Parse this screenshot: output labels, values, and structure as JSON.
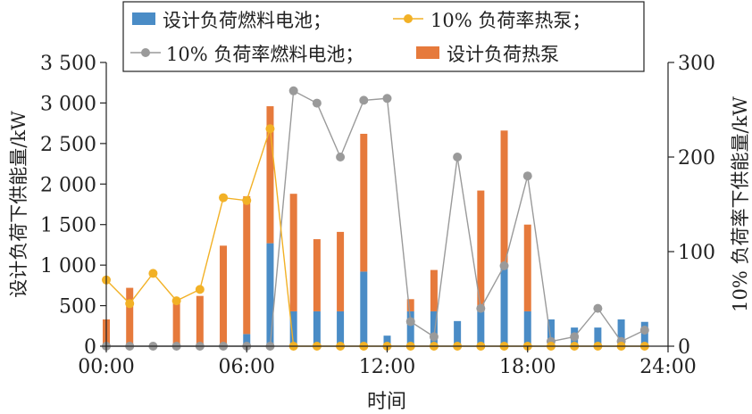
{
  "chart_data": {
    "type": "bar+line",
    "x_ticks": [
      "00:00",
      "06:00",
      "12:00",
      "18:00",
      "24:00"
    ],
    "xlabel": "时间",
    "ylabel_left": "设计负荷下供能量/kW",
    "ylabel_right": "10% 负荷率下供能量/kW",
    "y_left_ticks": [
      "0",
      "500",
      "1 000",
      "1 500",
      "2 000",
      "2 500",
      "3 000",
      "3 500"
    ],
    "y_right_ticks": [
      "0",
      "100",
      "200",
      "300"
    ],
    "ylim_left": [
      0,
      3500
    ],
    "ylim_right": [
      0,
      300
    ],
    "xlim": [
      0,
      24
    ],
    "legend": {
      "items": [
        {
          "label": "设计负荷燃料电池；",
          "kind": "bar",
          "color": "#4a8cc6"
        },
        {
          "label": "10% 负荷率热泵；",
          "kind": "line",
          "color": "#f2b126"
        },
        {
          "label": "10% 负荷率燃料电池；",
          "kind": "line",
          "color": "#9a9a9a"
        },
        {
          "label": "设计负荷热泵",
          "kind": "bar",
          "color": "#e67a3c"
        }
      ]
    },
    "hours": [
      0,
      1,
      2,
      3,
      4,
      5,
      6,
      7,
      8,
      9,
      10,
      11,
      12,
      13,
      14,
      15,
      16,
      17,
      18,
      19,
      20,
      21,
      22,
      23
    ],
    "bars_fuel_cell_design": [
      0,
      0,
      0,
      0,
      0,
      0,
      150,
      1270,
      430,
      430,
      430,
      920,
      130,
      430,
      430,
      310,
      430,
      990,
      430,
      330,
      230,
      230,
      330,
      300
    ],
    "bars_heat_pump_design": [
      330,
      720,
      0,
      530,
      620,
      1240,
      1700,
      1690,
      1450,
      890,
      980,
      1700,
      0,
      150,
      510,
      0,
      1490,
      1670,
      1070,
      0,
      0,
      0,
      0,
      0
    ],
    "line_heat_pump_10pct": [
      70,
      45,
      77,
      48,
      60,
      157,
      154,
      230,
      0,
      0,
      0,
      0,
      0,
      0,
      0,
      0,
      0,
      0,
      0,
      0,
      0,
      0,
      0,
      0
    ],
    "line_fuel_cell_10pct": [
      0,
      0,
      0,
      0,
      0,
      0,
      0,
      0,
      270,
      257,
      200,
      260,
      262,
      26,
      10,
      200,
      40,
      85,
      180,
      5,
      10,
      40,
      5,
      17
    ],
    "colors": {
      "fuel_cell_bar": "#4a8cc6",
      "heat_pump_bar": "#e67a3c",
      "hp_line": "#f2b126",
      "fc_line": "#9a9a9a"
    }
  }
}
